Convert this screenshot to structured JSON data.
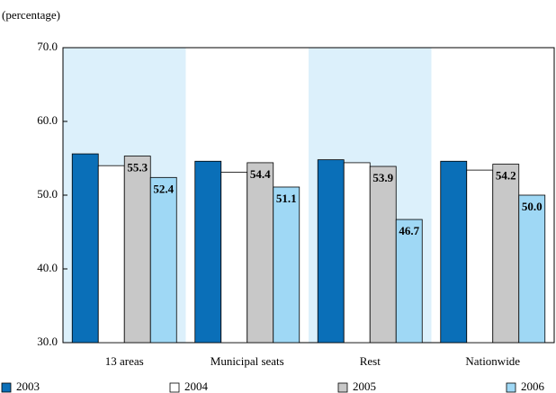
{
  "chart_data": {
    "type": "bar",
    "y_label": "(percentage)",
    "categories": [
      "13 areas",
      "Municipal seats",
      "Rest",
      "Nationwide"
    ],
    "series": [
      {
        "name": "2003",
        "color": "#0a6fb8",
        "values": [
          55.6,
          54.6,
          54.8,
          54.6
        ]
      },
      {
        "name": "2004",
        "color": "#ffffff",
        "values": [
          54.0,
          53.1,
          54.4,
          53.4
        ]
      },
      {
        "name": "2005",
        "color": "#c8c8c8",
        "values": [
          55.3,
          54.4,
          53.9,
          54.2
        ],
        "value_labels": [
          "55.3",
          "54.4",
          "53.9",
          "54.2"
        ]
      },
      {
        "name": "2006",
        "color": "#9fd8f5",
        "values": [
          52.4,
          51.1,
          46.7,
          50.0
        ],
        "value_labels": [
          "52.4",
          "51.1",
          "46.7",
          "50.0"
        ]
      }
    ],
    "ylim": [
      30,
      70
    ],
    "yticks": [
      {
        "value": 30,
        "label": "30.0"
      },
      {
        "value": 40,
        "label": "40.0"
      },
      {
        "value": 50,
        "label": "50.0"
      },
      {
        "value": 60,
        "label": "60.0"
      },
      {
        "value": 70,
        "label": "70.0"
      }
    ],
    "band_color": "#dcf0fb",
    "grid": false
  }
}
